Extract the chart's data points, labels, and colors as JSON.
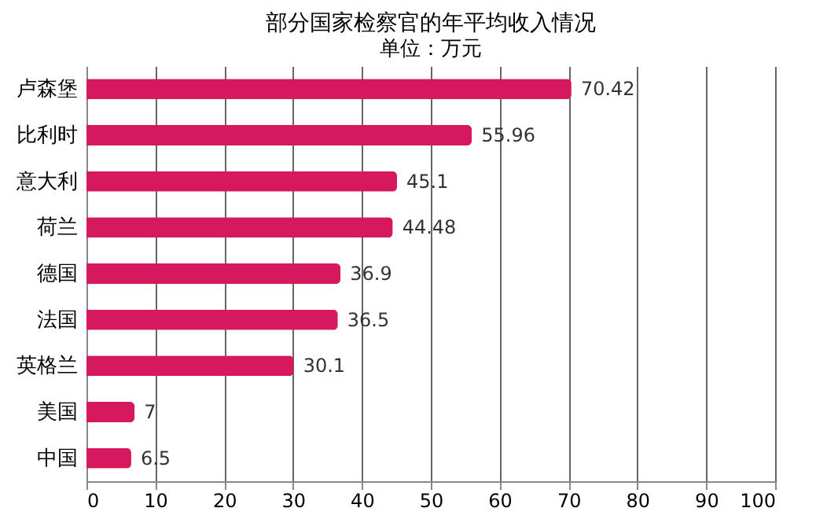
{
  "chart_data": {
    "type": "bar",
    "orientation": "horizontal",
    "title": "部分国家检察官的年平均收入情况",
    "subtitle": "单位：万元",
    "categories": [
      "卢森堡",
      "比利时",
      "意大利",
      "荷兰",
      "德国",
      "法国",
      "英格兰",
      "美国",
      "中国"
    ],
    "values": [
      70.42,
      55.96,
      45.1,
      44.48,
      36.9,
      36.5,
      30.1,
      7,
      6.5
    ],
    "color": "#d6195e",
    "xlim": [
      0,
      100
    ],
    "xticks": [
      0,
      10,
      20,
      30,
      40,
      50,
      60,
      70,
      80,
      90,
      100
    ],
    "grid": "x",
    "data_labels": true
  }
}
